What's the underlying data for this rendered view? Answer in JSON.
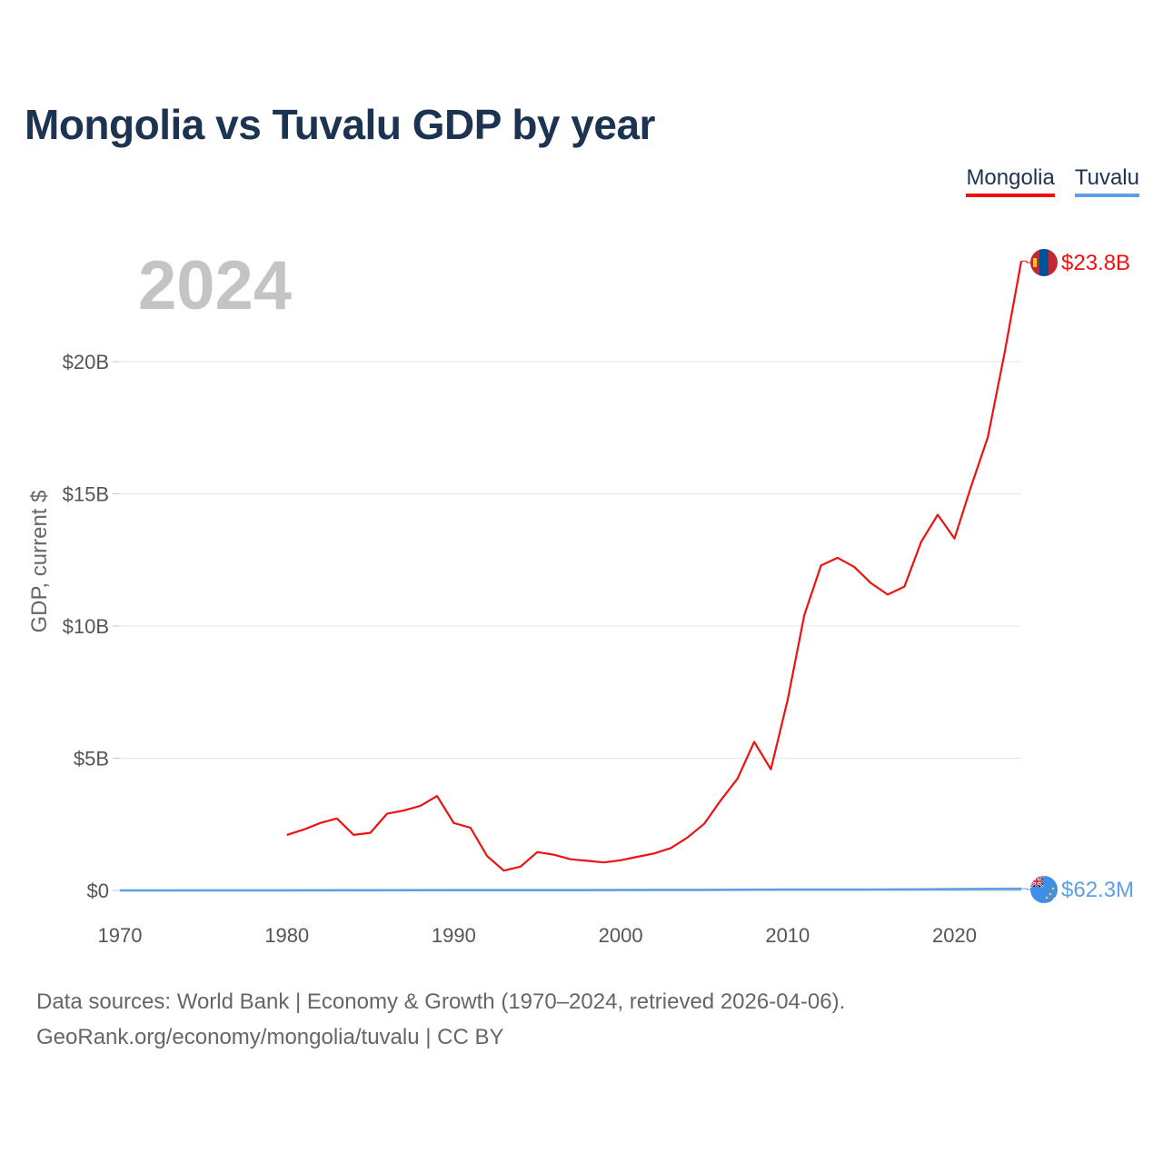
{
  "title": "Mongolia vs Tuvalu GDP by year",
  "legend": [
    {
      "label": "Mongolia",
      "color": "#ee1111"
    },
    {
      "label": "Tuvalu",
      "color": "#5f9fe6"
    }
  ],
  "current_year": "2024",
  "source": {
    "line1": "Data sources: World Bank | Economy & Growth (1970–2024, retrieved 2026-04-06).",
    "line2": "GeoRank.org/economy/mongolia/tuvalu | CC BY"
  },
  "chart_data": {
    "type": "line",
    "title": "Mongolia vs Tuvalu GDP by year",
    "xlabel": "",
    "ylabel": "GDP, current $",
    "xlim": [
      1970,
      2024
    ],
    "ylim": [
      0,
      23.8
    ],
    "y_unit": "billions of current US$",
    "x_ticks": [
      1970,
      1980,
      1990,
      2000,
      2010,
      2020
    ],
    "x_tick_labels": [
      "1970",
      "1980",
      "1990",
      "2000",
      "2010",
      "2020"
    ],
    "y_ticks": [
      0,
      5,
      10,
      15,
      20
    ],
    "y_tick_labels": [
      "$0",
      "$5B",
      "$10B",
      "$15B",
      "$20B"
    ],
    "grid": true,
    "legend_position": "top-right",
    "series": [
      {
        "name": "Mongolia",
        "color": "#ee1111",
        "end_label": "$23.8B",
        "x": [
          1980,
          1981,
          1982,
          1983,
          1984,
          1985,
          1986,
          1987,
          1988,
          1989,
          1990,
          1991,
          1992,
          1993,
          1994,
          1995,
          1996,
          1997,
          1998,
          1999,
          2000,
          2001,
          2002,
          2003,
          2004,
          2005,
          2006,
          2007,
          2008,
          2009,
          2010,
          2011,
          2012,
          2013,
          2014,
          2015,
          2016,
          2017,
          2018,
          2019,
          2020,
          2021,
          2022,
          2023,
          2024
        ],
        "values": [
          2.1,
          2.3,
          2.55,
          2.72,
          2.1,
          2.18,
          2.9,
          3.02,
          3.2,
          3.57,
          2.55,
          2.37,
          1.3,
          0.75,
          0.9,
          1.45,
          1.35,
          1.18,
          1.12,
          1.06,
          1.14,
          1.27,
          1.4,
          1.6,
          2.0,
          2.52,
          3.41,
          4.23,
          5.62,
          4.58,
          7.19,
          10.41,
          12.29,
          12.58,
          12.23,
          11.62,
          11.19,
          11.49,
          13.18,
          14.21,
          13.31,
          15.29,
          17.15,
          20.32,
          23.8
        ]
      },
      {
        "name": "Tuvalu",
        "color": "#5f9fe6",
        "end_label": "$62.3M",
        "x": [
          1970,
          1975,
          1980,
          1985,
          1990,
          1995,
          2000,
          2005,
          2010,
          2015,
          2020,
          2022,
          2023,
          2024
        ],
        "values": [
          0.001,
          0.003,
          0.005,
          0.007,
          0.01,
          0.012,
          0.014,
          0.021,
          0.032,
          0.036,
          0.048,
          0.06,
          0.062,
          0.0623
        ]
      }
    ]
  }
}
